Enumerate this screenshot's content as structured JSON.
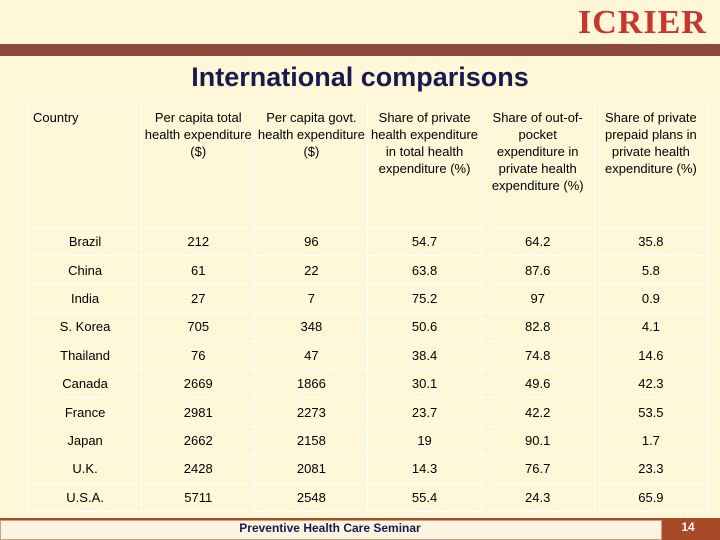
{
  "logo": "ICRIER",
  "title": "International comparisons",
  "table": {
    "headers": [
      "Country",
      "Per capita total health expenditure ($)",
      "Per capita govt. health expenditure ($)",
      "Share of private health expenditure in total health expenditure (%)",
      "Share of out-of-pocket expenditure in private health expenditure (%)",
      "Share of private prepaid plans in private health expenditure (%)"
    ],
    "rows": [
      [
        "Brazil",
        "212",
        "96",
        "54.7",
        "64.2",
        "35.8"
      ],
      [
        "China",
        "61",
        "22",
        "63.8",
        "87.6",
        "5.8"
      ],
      [
        "India",
        "27",
        "7",
        "75.2",
        "97",
        "0.9"
      ],
      [
        "S. Korea",
        "705",
        "348",
        "50.6",
        "82.8",
        "4.1"
      ],
      [
        "Thailand",
        "76",
        "47",
        "38.4",
        "74.8",
        "14.6"
      ],
      [
        "Canada",
        "2669",
        "1866",
        "30.1",
        "49.6",
        "42.3"
      ],
      [
        "France",
        "2981",
        "2273",
        "23.7",
        "42.2",
        "53.5"
      ],
      [
        "Japan",
        "2662",
        "2158",
        "19",
        "90.1",
        "1.7"
      ],
      [
        "U.K.",
        "2428",
        "2081",
        "14.3",
        "76.7",
        "23.3"
      ],
      [
        "U.S.A.",
        "5711",
        "2548",
        "55.4",
        "24.3",
        "65.9"
      ]
    ]
  },
  "footer": {
    "text": "Preventive Health Care Seminar",
    "page": "14"
  }
}
